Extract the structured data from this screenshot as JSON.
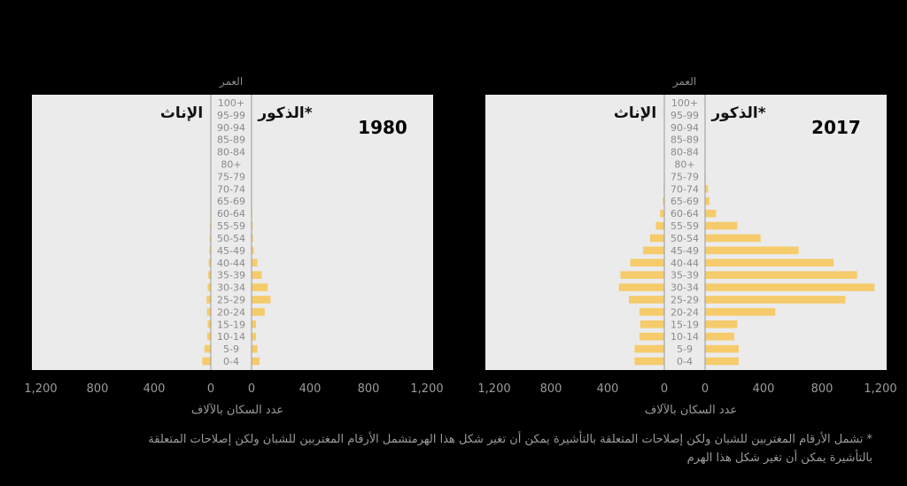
{
  "chart_data": [
    {
      "type": "bar",
      "title": "1980",
      "age_label": "العمر",
      "female_label": "الإناث",
      "male_label": "الذكور*",
      "xlabel": "عدد السكان بالآلاف",
      "xticks": [
        "1,200",
        "800",
        "400",
        "0",
        "0",
        "400",
        "800",
        "1,200"
      ],
      "xlim": [
        0,
        1200
      ],
      "categories": [
        "100+",
        "95-99",
        "90-94",
        "85-89",
        "80-84",
        "80+",
        "75-79",
        "70-74",
        "65-69",
        "60-64",
        "55-59",
        "50-54",
        "45-49",
        "40-44",
        "35-39",
        "30-34",
        "25-29",
        "20-24",
        "15-19",
        "10-14",
        "5-9",
        "0-4"
      ],
      "series": [
        {
          "name": "الإناث",
          "values": [
            0,
            0,
            0,
            0,
            0,
            0,
            2,
            3,
            3,
            4,
            6,
            8,
            10,
            15,
            18,
            22,
            30,
            27,
            22,
            25,
            45,
            60
          ]
        },
        {
          "name": "الذكور*",
          "values": [
            0,
            0,
            0,
            0,
            0,
            0,
            2,
            2,
            3,
            5,
            8,
            10,
            15,
            40,
            70,
            110,
            130,
            90,
            30,
            30,
            40,
            55
          ]
        }
      ],
      "bar_color": "#f5cb6b"
    },
    {
      "type": "bar",
      "title": "2017",
      "age_label": "العمر",
      "female_label": "الإناث",
      "male_label": "الذكور*",
      "xlabel": "عدد السكان بالآلاف",
      "xticks": [
        "1,200",
        "800",
        "400",
        "0",
        "0",
        "400",
        "800",
        "1,200"
      ],
      "xlim": [
        0,
        1200
      ],
      "categories": [
        "100+",
        "95-99",
        "90-94",
        "85-89",
        "80-84",
        "80+",
        "75-79",
        "70-74",
        "65-69",
        "60-64",
        "55-59",
        "50-54",
        "45-49",
        "40-44",
        "35-39",
        "30-34",
        "25-29",
        "20-24",
        "15-19",
        "10-14",
        "5-9",
        "0-4"
      ],
      "series": [
        {
          "name": "الإناث",
          "values": [
            0,
            0,
            0,
            0,
            0,
            0,
            3,
            5,
            10,
            30,
            60,
            100,
            150,
            240,
            310,
            320,
            250,
            175,
            170,
            175,
            210,
            210
          ]
        },
        {
          "name": "الذكور*",
          "values": [
            0,
            0,
            0,
            0,
            0,
            0,
            5,
            20,
            30,
            75,
            220,
            380,
            640,
            880,
            1040,
            1160,
            960,
            480,
            220,
            200,
            230,
            230
          ]
        }
      ],
      "bar_color": "#f5cb6b"
    }
  ],
  "footnote": {
    "line1": "* تشمل الأرقام المغتربين للشبان ولكن إصلاحات المتعلقة بالتأشيرة يمكن أن تغير شكل هذا الهرمتشمل الأرقام المغتربين للشبان ولكن إصلاحات المتعلقة",
    "line2": "بالتأشيرة يمكن أن تغير شكل هذا الهرم"
  }
}
